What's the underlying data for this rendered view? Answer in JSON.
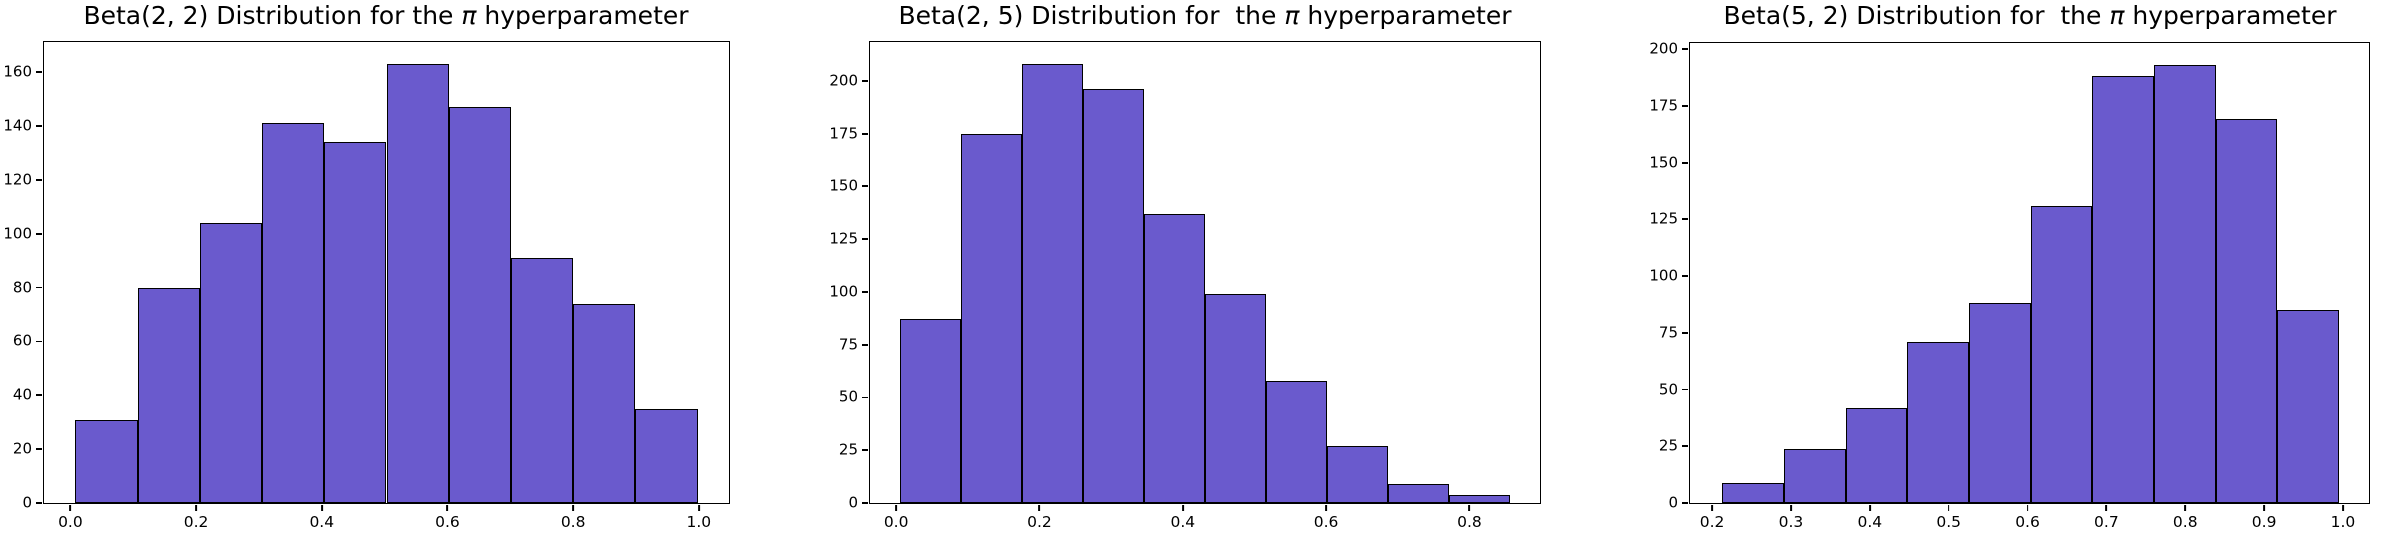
{
  "figure": {
    "background": "#ffffff",
    "bar_fill": "#6A5ACD",
    "bar_edge": "#000000",
    "axis_color": "#000000",
    "text_color": "#000000",
    "pi_symbol": "π"
  },
  "chart_data": [
    {
      "type": "bar",
      "subtype": "histogram",
      "title": "Beta(2, 2) Distribution for the π hyperparameter",
      "title_prefix": "Beta(2, 2) Distribution for the ",
      "title_suffix": " hyperparameter",
      "xlabel": "",
      "ylabel": "",
      "num_bins": 10,
      "bin_start": 0.008,
      "bin_end": 0.998,
      "counts": [
        31,
        80,
        104,
        141,
        134,
        163,
        147,
        91,
        74,
        35
      ],
      "xticks": [
        0.0,
        0.2,
        0.4,
        0.6,
        0.8,
        1.0
      ],
      "xtick_labels": [
        "0.0",
        "0.2",
        "0.4",
        "0.6",
        "0.8",
        "1.0"
      ],
      "yticks": [
        0,
        20,
        40,
        60,
        80,
        100,
        120,
        140,
        160
      ],
      "ytick_labels": [
        "0",
        "20",
        "40",
        "60",
        "80",
        "100",
        "120",
        "140",
        "160"
      ],
      "xlim": [
        -0.042,
        1.048
      ],
      "ylim": [
        0,
        171.2
      ],
      "grid": false,
      "legend": null
    },
    {
      "type": "bar",
      "subtype": "histogram",
      "title": "Beta(2, 5) Distribution for  the π hyperparameter",
      "title_prefix": "Beta(2, 5) Distribution for  the ",
      "title_suffix": " hyperparameter",
      "xlabel": "",
      "ylabel": "",
      "num_bins": 10,
      "bin_start": 0.006,
      "bin_end": 0.856,
      "counts": [
        87,
        175,
        208,
        196,
        137,
        99,
        58,
        27,
        9,
        4
      ],
      "xticks": [
        0.0,
        0.2,
        0.4,
        0.6,
        0.8
      ],
      "xtick_labels": [
        "0.0",
        "0.2",
        "0.4",
        "0.6",
        "0.8"
      ],
      "yticks": [
        0,
        25,
        50,
        75,
        100,
        125,
        150,
        175,
        200
      ],
      "ytick_labels": [
        "0",
        "25",
        "50",
        "75",
        "100",
        "125",
        "150",
        "175",
        "200"
      ],
      "xlim": [
        -0.0365,
        0.8985
      ],
      "ylim": [
        0,
        218.4
      ],
      "grid": false,
      "legend": null
    },
    {
      "type": "bar",
      "subtype": "histogram",
      "title": "Beta(5, 2) Distribution for  the π hyperparameter",
      "title_prefix": "Beta(5, 2) Distribution for  the ",
      "title_suffix": " hyperparameter",
      "xlabel": "",
      "ylabel": "",
      "num_bins": 10,
      "bin_start": 0.213,
      "bin_end": 0.995,
      "counts": [
        9,
        24,
        42,
        71,
        88,
        131,
        188,
        193,
        169,
        85
      ],
      "xticks": [
        0.2,
        0.3,
        0.4,
        0.5,
        0.6,
        0.7,
        0.8,
        0.9,
        1.0
      ],
      "xtick_labels": [
        "0.2",
        "0.3",
        "0.4",
        "0.5",
        "0.6",
        "0.7",
        "0.8",
        "0.9",
        "1.0"
      ],
      "yticks": [
        0,
        25,
        50,
        75,
        100,
        125,
        150,
        175,
        200
      ],
      "ytick_labels": [
        "0",
        "25",
        "50",
        "75",
        "100",
        "125",
        "150",
        "175",
        "200"
      ],
      "xlim": [
        0.172,
        1.033
      ],
      "ylim": [
        0,
        202.7
      ],
      "grid": false,
      "legend": null
    }
  ]
}
